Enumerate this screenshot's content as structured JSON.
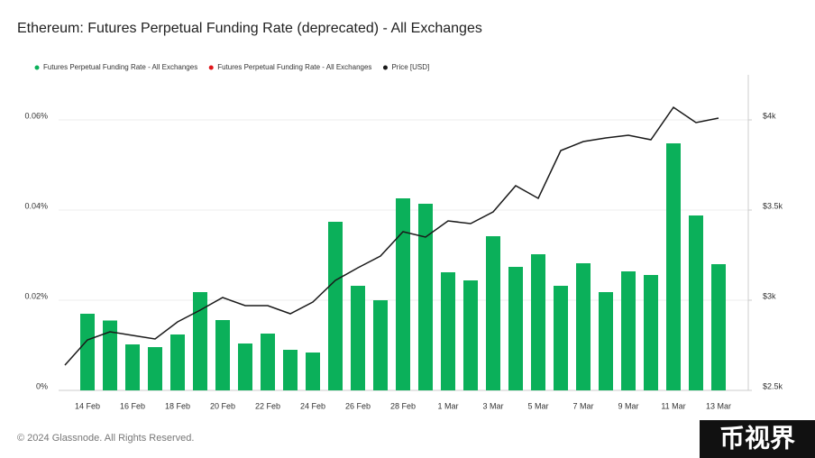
{
  "chart_data": {
    "type": "bar_line",
    "title": "Ethereum: Futures Perpetual Funding Rate (deprecated) - All Exchanges",
    "footer": "© 2024 Glassnode. All Rights Reserved.",
    "watermark": "币视界",
    "categories": [
      null,
      "14 Feb",
      null,
      "16 Feb",
      null,
      "18 Feb",
      null,
      "20 Feb",
      null,
      "22 Feb",
      null,
      "24 Feb",
      null,
      "26 Feb",
      null,
      "28 Feb",
      null,
      "1 Mar",
      null,
      "3 Mar",
      null,
      "5 Mar",
      null,
      "7 Mar",
      null,
      "9 Mar",
      null,
      "11 Mar",
      null,
      "13 Mar"
    ],
    "series": [
      {
        "name": "Futures Perpetual Funding Rate - All Exchanges",
        "color": "#0bb05a",
        "kind": "bar",
        "values": [
          null,
          0.017,
          0.0155,
          0.0102,
          0.0096,
          0.0124,
          0.0218,
          0.0156,
          0.0104,
          0.0126,
          0.009,
          0.0084,
          0.0374,
          0.0232,
          0.02,
          0.0426,
          0.0414,
          0.0262,
          0.0244,
          0.0342,
          0.0274,
          0.0302,
          0.0232,
          0.0282,
          0.0218,
          0.0264,
          0.0256,
          0.0548,
          0.0388,
          0.028
        ]
      },
      {
        "name": "Futures Perpetual Funding Rate - All Exchanges",
        "color": "#e0161b",
        "kind": "bar",
        "values": [
          null,
          null,
          null,
          null,
          null,
          null,
          null,
          null,
          null,
          null,
          null,
          null,
          null,
          null,
          null,
          null,
          null,
          null,
          null,
          null,
          null,
          null,
          null,
          null,
          null,
          null,
          null,
          null,
          null,
          null
        ]
      },
      {
        "name": "Price [USD]",
        "color": "#1a1a1a",
        "kind": "line",
        "axis": "y2",
        "values": [
          2640,
          2780,
          2825,
          2805,
          2785,
          2880,
          2945,
          3015,
          2970,
          2970,
          2925,
          2990,
          3110,
          3180,
          3245,
          3380,
          3350,
          3440,
          3425,
          3490,
          3635,
          3565,
          3830,
          3880,
          3900,
          3915,
          3890,
          4070,
          3985,
          4010
        ]
      }
    ],
    "ylim": [
      0,
      0.07
    ],
    "yticks": [
      {
        "value": 0,
        "label": "0%"
      },
      {
        "value": 0.02,
        "label": "0.02%"
      },
      {
        "value": 0.04,
        "label": "0.04%"
      },
      {
        "value": 0.06,
        "label": "0.06%"
      }
    ],
    "y2lim": [
      2500,
      4250
    ],
    "y2ticks": [
      {
        "value": 2500,
        "label": "$2.5k"
      },
      {
        "value": 3000,
        "label": "$3k"
      },
      {
        "value": 3500,
        "label": "$3.5k"
      },
      {
        "value": 4000,
        "label": "$4k"
      }
    ],
    "grid": true
  }
}
